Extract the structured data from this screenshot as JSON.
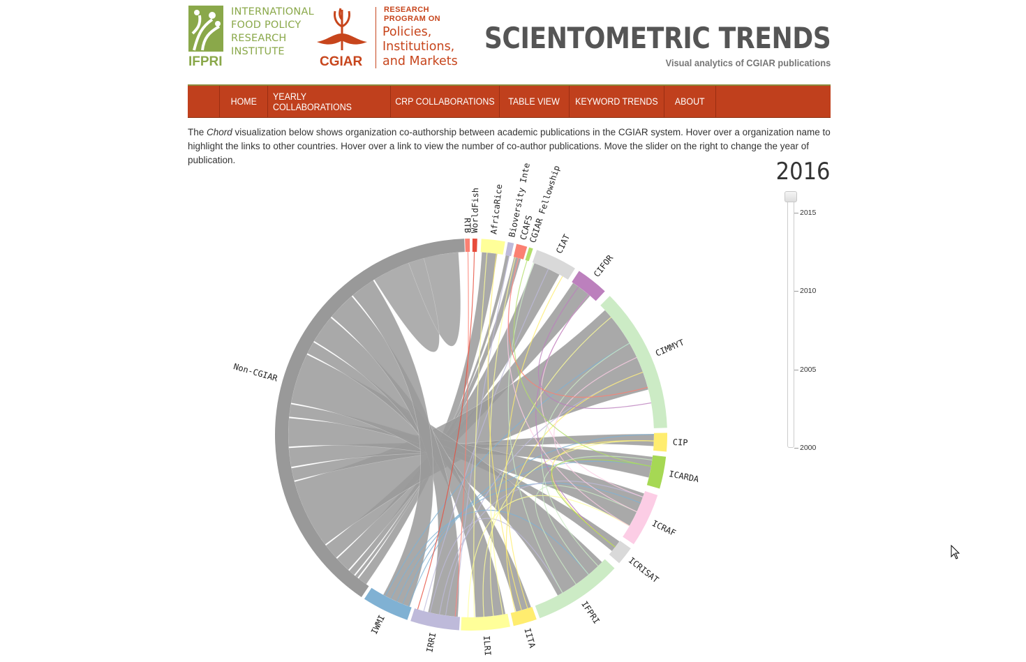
{
  "header": {
    "ifpri": {
      "lines": [
        "INTERNATIONAL",
        "FOOD POLICY",
        "RESEARCH",
        "INSTITUTE"
      ],
      "abbr": "IFPRI"
    },
    "cgiar": {
      "abbr": "CGIAR",
      "program_lines": [
        "RESEARCH",
        "PROGRAM ON"
      ],
      "program_name_lines": [
        "Policies,",
        "Institutions,",
        "and Markets"
      ]
    },
    "title": "SCIENTOMETRIC TRENDS",
    "subtitle": "Visual analytics of CGIAR publications"
  },
  "nav": {
    "items": [
      {
        "label": "HOME"
      },
      {
        "label": "YEARLY COLLABORATIONS"
      },
      {
        "label": "CRP COLLABORATIONS"
      },
      {
        "label": "TABLE VIEW"
      },
      {
        "label": "KEYWORD TRENDS"
      },
      {
        "label": "ABOUT"
      }
    ]
  },
  "intro": {
    "before": "The ",
    "emph": "Chord",
    "after": " visualization below shows organization co-authorship between academic publications in the CGIAR system. Hover over a organization name to highlight the links to other countries. Hover over a link to view the number of co-author publications. Move the slider on the right to change the year of publication."
  },
  "slider": {
    "year": "2016",
    "ticks": [
      "2015",
      "2010",
      "2005",
      "2000"
    ],
    "value": 2016,
    "min": 2000,
    "max": 2016
  },
  "chord": {
    "groups": [
      {
        "name": "Non-CGIAR",
        "color": "#999999"
      },
      {
        "name": "RTB",
        "color": "#fb8072"
      },
      {
        "name": "WorldFish",
        "color": "#e74c3c"
      },
      {
        "name": "AfricaRice",
        "color": "#ffff99"
      },
      {
        "name": "Bioversity Inte",
        "color": "#bebada"
      },
      {
        "name": "CCAFS",
        "color": "#fb8072"
      },
      {
        "name": "CGIAR Fellowship",
        "color": "#b3de69"
      },
      {
        "name": "CIAT",
        "color": "#d9d9d9"
      },
      {
        "name": "CIFOR",
        "color": "#bc80bd"
      },
      {
        "name": "CIMMYT",
        "color": "#ccebc5"
      },
      {
        "name": "CIP",
        "color": "#ffed6f"
      },
      {
        "name": "ICARDA",
        "color": "#a6d854"
      },
      {
        "name": "ICRAF",
        "color": "#fccde5"
      },
      {
        "name": "ICRISAT",
        "color": "#d9d9d9"
      },
      {
        "name": "IFPRI",
        "color": "#ccebc5"
      },
      {
        "name": "IITA",
        "color": "#ffed6f"
      },
      {
        "name": "ILRI",
        "color": "#ffff99"
      },
      {
        "name": "IRRI",
        "color": "#bebada"
      },
      {
        "name": "IWMI",
        "color": "#80b1d3"
      }
    ],
    "ribbon_color": "#9a9a9a"
  }
}
